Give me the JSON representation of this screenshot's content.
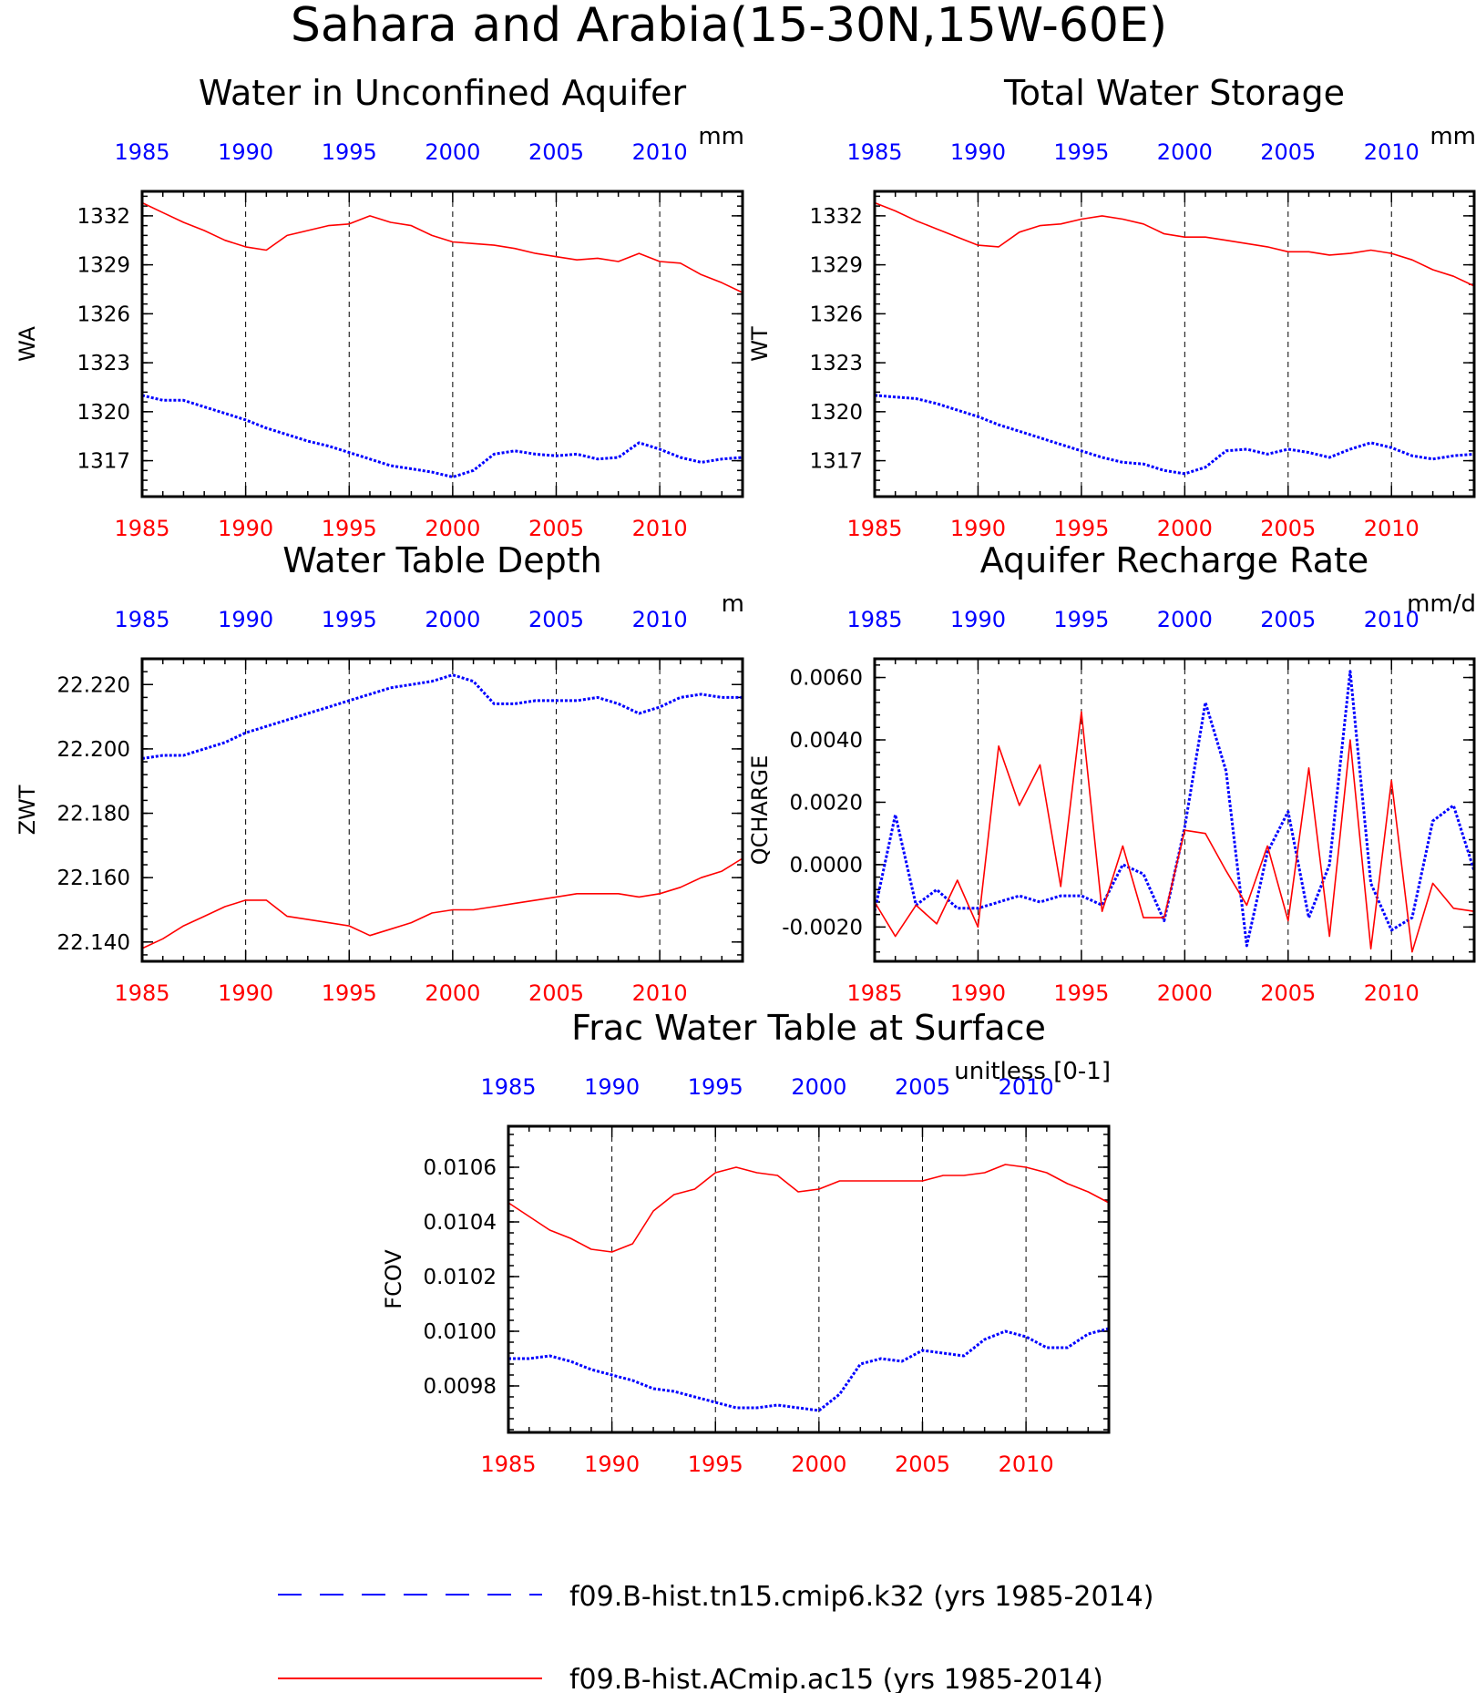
{
  "main_title": "Sahara and Arabia(15-30N,15W-60E)",
  "colors": {
    "series_a": "#0000ff",
    "series_b": "#ff0000",
    "axis": "#000000",
    "grid": "#000000"
  },
  "legend": {
    "items": [
      {
        "label": "f09.B-hist.tn15.cmip6.k32 (yrs 1985-2014)",
        "color": "#0000ff",
        "style": "dashed"
      },
      {
        "label": "f09.B-hist.ACmip.ac15 (yrs 1985-2014)",
        "color": "#ff0000",
        "style": "solid"
      }
    ]
  },
  "chart_data": [
    {
      "type": "line",
      "title": "Water in Unconfined Aquifer",
      "units": "mm",
      "ylabel": "WA",
      "xlim": [
        1985,
        2014
      ],
      "ylim": [
        1314.8,
        1333.5
      ],
      "yticks": [
        1317,
        1320,
        1323,
        1326,
        1329,
        1332
      ],
      "ytick_labels": [
        "1317",
        "1320",
        "1323",
        "1326",
        "1329",
        "1332"
      ],
      "xticks": [
        1985,
        1990,
        1995,
        2000,
        2005,
        2010
      ],
      "xtick_labels": [
        "1985",
        "1990",
        "1995",
        "2000",
        "2005",
        "2010"
      ],
      "grid_x": true,
      "x": [
        1985,
        1986,
        1987,
        1988,
        1989,
        1990,
        1991,
        1992,
        1993,
        1994,
        1995,
        1996,
        1997,
        1998,
        1999,
        2000,
        2001,
        2002,
        2003,
        2004,
        2005,
        2006,
        2007,
        2008,
        2009,
        2010,
        2011,
        2012,
        2013,
        2014
      ],
      "series": [
        {
          "color": "#0000ff",
          "style": "dotted",
          "values": [
            1321.0,
            1320.7,
            1320.7,
            1320.3,
            1319.9,
            1319.5,
            1319.0,
            1318.6,
            1318.2,
            1317.9,
            1317.5,
            1317.1,
            1316.7,
            1316.5,
            1316.3,
            1316.0,
            1316.4,
            1317.4,
            1317.6,
            1317.4,
            1317.3,
            1317.4,
            1317.1,
            1317.2,
            1318.1,
            1317.7,
            1317.2,
            1316.9,
            1317.1,
            1317.2
          ]
        },
        {
          "color": "#ff0000",
          "style": "solid",
          "values": [
            1332.8,
            1332.2,
            1331.6,
            1331.1,
            1330.5,
            1330.1,
            1329.9,
            1330.8,
            1331.1,
            1331.4,
            1331.5,
            1332.0,
            1331.6,
            1331.4,
            1330.8,
            1330.4,
            1330.3,
            1330.2,
            1330.0,
            1329.7,
            1329.5,
            1329.3,
            1329.4,
            1329.2,
            1329.7,
            1329.2,
            1329.1,
            1328.4,
            1327.9,
            1327.3
          ]
        }
      ]
    },
    {
      "type": "line",
      "title": "Total Water Storage",
      "units": "mm",
      "ylabel": "WT",
      "xlim": [
        1985,
        2014
      ],
      "ylim": [
        1314.8,
        1333.5
      ],
      "yticks": [
        1317,
        1320,
        1323,
        1326,
        1329,
        1332
      ],
      "ytick_labels": [
        "1317",
        "1320",
        "1323",
        "1326",
        "1329",
        "1332"
      ],
      "xticks": [
        1985,
        1990,
        1995,
        2000,
        2005,
        2010
      ],
      "xtick_labels": [
        "1985",
        "1990",
        "1995",
        "2000",
        "2005",
        "2010"
      ],
      "grid_x": true,
      "x": [
        1985,
        1986,
        1987,
        1988,
        1989,
        1990,
        1991,
        1992,
        1993,
        1994,
        1995,
        1996,
        1997,
        1998,
        1999,
        2000,
        2001,
        2002,
        2003,
        2004,
        2005,
        2006,
        2007,
        2008,
        2009,
        2010,
        2011,
        2012,
        2013,
        2014
      ],
      "series": [
        {
          "color": "#0000ff",
          "style": "dotted",
          "values": [
            1321.0,
            1320.9,
            1320.8,
            1320.5,
            1320.1,
            1319.7,
            1319.2,
            1318.8,
            1318.4,
            1318.0,
            1317.6,
            1317.2,
            1316.9,
            1316.8,
            1316.4,
            1316.2,
            1316.6,
            1317.6,
            1317.7,
            1317.4,
            1317.7,
            1317.5,
            1317.2,
            1317.7,
            1318.1,
            1317.8,
            1317.3,
            1317.1,
            1317.3,
            1317.4
          ]
        },
        {
          "color": "#ff0000",
          "style": "solid",
          "values": [
            1332.8,
            1332.3,
            1331.7,
            1331.2,
            1330.7,
            1330.2,
            1330.1,
            1331.0,
            1331.4,
            1331.5,
            1331.8,
            1332.0,
            1331.8,
            1331.5,
            1330.9,
            1330.7,
            1330.7,
            1330.5,
            1330.3,
            1330.1,
            1329.8,
            1329.8,
            1329.6,
            1329.7,
            1329.9,
            1329.7,
            1329.3,
            1328.7,
            1328.3,
            1327.7
          ]
        }
      ]
    },
    {
      "type": "line",
      "title": "Water Table Depth",
      "units": "m",
      "ylabel": "ZWT",
      "xlim": [
        1985,
        2014
      ],
      "ylim": [
        22.134,
        22.228
      ],
      "yticks": [
        22.14,
        22.16,
        22.18,
        22.2,
        22.22
      ],
      "ytick_labels": [
        "22.140",
        "22.160",
        "22.180",
        "22.200",
        "22.220"
      ],
      "xticks": [
        1985,
        1990,
        1995,
        2000,
        2005,
        2010
      ],
      "xtick_labels": [
        "1985",
        "1990",
        "1995",
        "2000",
        "2005",
        "2010"
      ],
      "grid_x": true,
      "x": [
        1985,
        1986,
        1987,
        1988,
        1989,
        1990,
        1991,
        1992,
        1993,
        1994,
        1995,
        1996,
        1997,
        1998,
        1999,
        2000,
        2001,
        2002,
        2003,
        2004,
        2005,
        2006,
        2007,
        2008,
        2009,
        2010,
        2011,
        2012,
        2013,
        2014
      ],
      "series": [
        {
          "color": "#0000ff",
          "style": "dotted",
          "values": [
            22.197,
            22.198,
            22.198,
            22.2,
            22.202,
            22.205,
            22.207,
            22.209,
            22.211,
            22.213,
            22.215,
            22.217,
            22.219,
            22.22,
            22.221,
            22.223,
            22.221,
            22.214,
            22.214,
            22.215,
            22.215,
            22.215,
            22.216,
            22.214,
            22.211,
            22.213,
            22.216,
            22.217,
            22.216,
            22.216
          ]
        },
        {
          "color": "#ff0000",
          "style": "solid",
          "values": [
            22.138,
            22.141,
            22.145,
            22.148,
            22.151,
            22.153,
            22.153,
            22.148,
            22.147,
            22.146,
            22.145,
            22.142,
            22.144,
            22.146,
            22.149,
            22.15,
            22.15,
            22.151,
            22.152,
            22.153,
            22.154,
            22.155,
            22.155,
            22.155,
            22.154,
            22.155,
            22.157,
            22.16,
            22.162,
            22.166
          ]
        }
      ]
    },
    {
      "type": "line",
      "title": "Aquifer Recharge Rate",
      "units": "mm/d",
      "ylabel": "QCHARGE",
      "xlim": [
        1985,
        2014
      ],
      "ylim": [
        -0.0031,
        0.0066
      ],
      "yticks": [
        -0.002,
        0,
        0.002,
        0.004,
        0.006
      ],
      "ytick_labels": [
        "-0.0020",
        "0.0000",
        "0.0020",
        "0.0040",
        "0.0060"
      ],
      "xticks": [
        1985,
        1990,
        1995,
        2000,
        2005,
        2010
      ],
      "xtick_labels": [
        "1985",
        "1990",
        "1995",
        "2000",
        "2005",
        "2010"
      ],
      "grid_x": true,
      "x": [
        1985,
        1986,
        1987,
        1988,
        1989,
        1990,
        1991,
        1992,
        1993,
        1994,
        1995,
        1996,
        1997,
        1998,
        1999,
        2000,
        2001,
        2002,
        2003,
        2004,
        2005,
        2006,
        2007,
        2008,
        2009,
        2010,
        2011,
        2012,
        2013,
        2014
      ],
      "series": [
        {
          "color": "#0000ff",
          "style": "dotted",
          "values": [
            -0.0015,
            0.0016,
            -0.0013,
            -0.0008,
            -0.0014,
            -0.0014,
            -0.0012,
            -0.001,
            -0.0012,
            -0.001,
            -0.001,
            -0.0013,
            0.0,
            -0.0003,
            -0.0018,
            0.0012,
            0.0052,
            0.003,
            -0.0026,
            0.0004,
            0.0017,
            -0.0017,
            0.0,
            0.0062,
            -0.0006,
            -0.0021,
            -0.0017,
            0.0014,
            0.0019,
            -0.0002
          ]
        },
        {
          "color": "#ff0000",
          "style": "solid",
          "values": [
            -0.0012,
            -0.0023,
            -0.0013,
            -0.0019,
            -0.0005,
            -0.002,
            0.0038,
            0.0019,
            0.0032,
            -0.0007,
            0.0049,
            -0.0015,
            0.0006,
            -0.0017,
            -0.0017,
            0.0011,
            0.001,
            -0.0002,
            -0.0013,
            0.0006,
            -0.0018,
            0.0031,
            -0.0023,
            0.004,
            -0.0027,
            0.0027,
            -0.0028,
            -0.0006,
            -0.0014,
            -0.0015
          ]
        }
      ]
    },
    {
      "type": "line",
      "title": "Frac Water Table at Surface",
      "units": "unitless [0-1]",
      "ylabel": "FCOV",
      "xlim": [
        1985,
        2014
      ],
      "ylim": [
        0.00963,
        0.01075
      ],
      "yticks": [
        0.0098,
        0.01,
        0.0102,
        0.0104,
        0.0106
      ],
      "ytick_labels": [
        "0.0098",
        "0.0100",
        "0.0102",
        "0.0104",
        "0.0106"
      ],
      "xticks": [
        1985,
        1990,
        1995,
        2000,
        2005,
        2010
      ],
      "xtick_labels": [
        "1985",
        "1990",
        "1995",
        "2000",
        "2005",
        "2010"
      ],
      "grid_x": true,
      "x": [
        1985,
        1986,
        1987,
        1988,
        1989,
        1990,
        1991,
        1992,
        1993,
        1994,
        1995,
        1996,
        1997,
        1998,
        1999,
        2000,
        2001,
        2002,
        2003,
        2004,
        2005,
        2006,
        2007,
        2008,
        2009,
        2010,
        2011,
        2012,
        2013,
        2014
      ],
      "series": [
        {
          "color": "#0000ff",
          "style": "dotted",
          "values": [
            0.0099,
            0.0099,
            0.00991,
            0.00989,
            0.00986,
            0.00984,
            0.00982,
            0.00979,
            0.00978,
            0.00976,
            0.00974,
            0.00972,
            0.00972,
            0.00973,
            0.00972,
            0.00971,
            0.00977,
            0.00988,
            0.0099,
            0.00989,
            0.00993,
            0.00992,
            0.00991,
            0.00997,
            0.01,
            0.00998,
            0.00994,
            0.00994,
            0.00999,
            0.01001
          ]
        },
        {
          "color": "#ff0000",
          "style": "solid",
          "values": [
            0.01047,
            0.01042,
            0.01037,
            0.01034,
            0.0103,
            0.01029,
            0.01032,
            0.01044,
            0.0105,
            0.01052,
            0.01058,
            0.0106,
            0.01058,
            0.01057,
            0.01051,
            0.01052,
            0.01055,
            0.01055,
            0.01055,
            0.01055,
            0.01055,
            0.01057,
            0.01057,
            0.01058,
            0.01061,
            0.0106,
            0.01058,
            0.01054,
            0.01051,
            0.01047
          ]
        }
      ]
    }
  ]
}
